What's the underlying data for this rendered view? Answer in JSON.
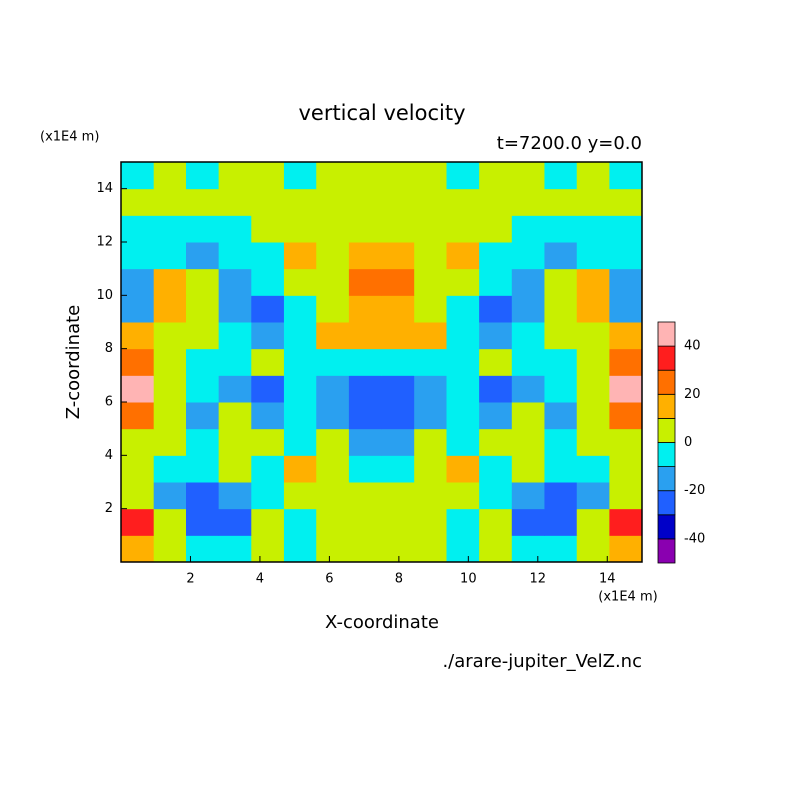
{
  "chart_data": {
    "type": "contour",
    "title": "vertical velocity",
    "subtitle": "t=7200.0 y=0.0",
    "xlabel": "X-coordinate",
    "ylabel": "Z-coordinate",
    "x_unit": "(x1E4 m)",
    "y_unit": "(x1E4 m)",
    "source": "./arare-jupiter_VelZ.nc",
    "xlim": [
      0,
      15
    ],
    "ylim": [
      0,
      15
    ],
    "xticks": [
      2,
      4,
      6,
      8,
      10,
      12,
      14
    ],
    "yticks": [
      2,
      4,
      6,
      8,
      10,
      12,
      14
    ],
    "x": [
      0.47,
      1.41,
      2.34,
      3.28,
      4.22,
      5.16,
      6.09,
      7.03,
      7.97,
      8.91,
      9.84,
      10.78,
      11.72,
      12.66,
      13.59,
      14.53
    ],
    "y": [
      0.5,
      1.5,
      2.5,
      3.5,
      4.5,
      5.5,
      6.5,
      7.5,
      8.5,
      9.5,
      10.5,
      11.5,
      12.5,
      13.5,
      14.5
    ],
    "values": [
      [
        15,
        5,
        -5,
        -5,
        5,
        -5,
        5,
        5,
        5,
        5,
        -5,
        5,
        -5,
        -5,
        5,
        15
      ],
      [
        35,
        5,
        -25,
        -25,
        5,
        -5,
        5,
        5,
        5,
        5,
        -5,
        5,
        -25,
        -25,
        5,
        35
      ],
      [
        5,
        -15,
        -25,
        -15,
        -5,
        5,
        5,
        5,
        5,
        5,
        5,
        -5,
        -15,
        -25,
        -15,
        5
      ],
      [
        5,
        -5,
        -5,
        5,
        -5,
        15,
        5,
        -5,
        -5,
        5,
        15,
        -5,
        5,
        -5,
        -5,
        5
      ],
      [
        5,
        5,
        -5,
        5,
        5,
        -5,
        5,
        -15,
        -15,
        5,
        -5,
        5,
        5,
        -5,
        5,
        5
      ],
      [
        25,
        5,
        -15,
        5,
        -15,
        -5,
        -15,
        -25,
        -25,
        -15,
        -5,
        -15,
        5,
        -15,
        5,
        25
      ],
      [
        45,
        5,
        -5,
        -15,
        -25,
        -5,
        -15,
        -25,
        -25,
        -15,
        -5,
        -25,
        -15,
        -5,
        5,
        45
      ],
      [
        25,
        5,
        -5,
        -5,
        5,
        -5,
        -5,
        -5,
        -5,
        -5,
        -5,
        5,
        -5,
        -5,
        5,
        25
      ],
      [
        15,
        5,
        5,
        -5,
        -15,
        -5,
        15,
        15,
        15,
        15,
        -5,
        -15,
        -5,
        5,
        5,
        15
      ],
      [
        -15,
        15,
        5,
        -15,
        -25,
        -5,
        5,
        15,
        15,
        5,
        -5,
        -25,
        -15,
        5,
        15,
        -15
      ],
      [
        -15,
        15,
        5,
        -15,
        -5,
        5,
        5,
        25,
        25,
        5,
        5,
        -5,
        -15,
        5,
        15,
        -15
      ],
      [
        -5,
        -5,
        -15,
        -5,
        -5,
        15,
        5,
        15,
        15,
        5,
        15,
        -5,
        -5,
        -15,
        -5,
        -5
      ],
      [
        -5,
        -5,
        -5,
        -5,
        5,
        5,
        5,
        5,
        5,
        5,
        5,
        5,
        -5,
        -5,
        -5,
        -5
      ],
      [
        5,
        5,
        5,
        5,
        5,
        5,
        5,
        5,
        5,
        5,
        5,
        5,
        5,
        5,
        5,
        5
      ],
      [
        -5,
        5,
        -5,
        5,
        5,
        -5,
        5,
        5,
        5,
        5,
        -5,
        5,
        5,
        -5,
        5,
        -5
      ]
    ],
    "levels": [
      -50,
      -40,
      -30,
      -20,
      -10,
      0,
      10,
      20,
      30,
      40,
      50
    ],
    "colors": [
      "#8a00b0",
      "#0000c8",
      "#2060ff",
      "#2aa0f0",
      "#00f0f0",
      "#c8f000",
      "#ffb000",
      "#ff7000",
      "#ff1e1e",
      "#ffb4b4"
    ],
    "colorbar_ticks": [
      -40,
      -20,
      0,
      20,
      40
    ]
  }
}
